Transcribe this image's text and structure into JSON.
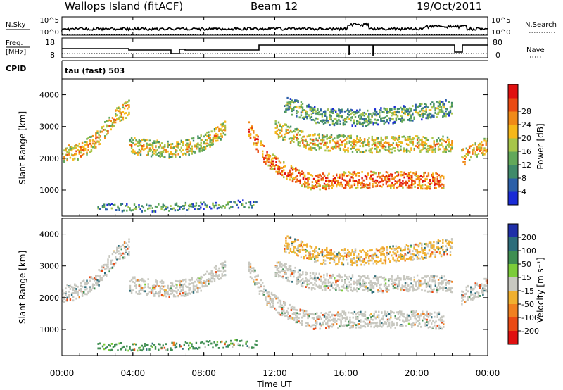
{
  "header": {
    "station": "Wallops Island (fitACF)",
    "beam": "Beam 12",
    "date": "19/Oct/2011"
  },
  "strips": {
    "nsky_label": "N.Sky",
    "nsearch_label": "N.Search",
    "freq_label_1": "Freq.",
    "freq_label_2": "[MHz]",
    "nave_label": "Nave",
    "cpid_label": "CPID",
    "cpid_value": "tau (fast) 503",
    "nsky_ticks": [
      "10^5",
      "10^0"
    ],
    "nsearch_ticks": [
      "10^5",
      "10^0"
    ],
    "freq_ticks": [
      "18",
      "8"
    ],
    "nave_ticks": [
      "80",
      "0"
    ]
  },
  "chart_data": [
    {
      "type": "heatmap",
      "parameter": "power",
      "xlabel": "Time UT",
      "ylabel": "Slant Range [km]",
      "x_ticks": [
        "00:00",
        "04:00",
        "08:00",
        "12:00",
        "16:00",
        "20:00",
        "00:00"
      ],
      "xlim_hours": [
        0,
        24
      ],
      "y_ticks": [
        1000,
        2000,
        3000,
        4000
      ],
      "ylim": [
        180,
        4500
      ],
      "colorbar_label": "Power [dB]",
      "colorbar_ticks": [
        "4",
        "8",
        "12",
        "16",
        "20",
        "24",
        "28"
      ],
      "colorbar_range": [
        0,
        32
      ],
      "colorbar_colors": [
        "#1a2bd6",
        "#2b5fa8",
        "#3f8a6a",
        "#62a85a",
        "#a7c54a",
        "#f6b81a",
        "#f08a18",
        "#ea4a12",
        "#e01010"
      ],
      "echo_bands": [
        {
          "t": [
            0.0,
            1.0,
            2.0,
            3.0,
            3.8
          ],
          "range": [
            2100,
            2200,
            2600,
            3300,
            3600
          ],
          "power": 22
        },
        {
          "t": [
            3.8,
            5.0,
            6.0,
            7.0,
            8.0,
            9.2
          ],
          "range": [
            2400,
            2300,
            2250,
            2300,
            2500,
            2900
          ],
          "power": 20
        },
        {
          "t": [
            10.5,
            11.5,
            12.5,
            14.0,
            16.0,
            18.0,
            20.0,
            21.5
          ],
          "range": [
            2900,
            2000,
            1600,
            1250,
            1300,
            1300,
            1300,
            1250
          ],
          "power": 27
        },
        {
          "t": [
            12.0,
            14.0,
            16.0,
            18.0,
            20.0,
            22.0
          ],
          "range": [
            2900,
            2500,
            2450,
            2400,
            2450,
            2400
          ],
          "power": 21
        },
        {
          "t": [
            12.5,
            14.5,
            17.0,
            19.5,
            22.0
          ],
          "range": [
            3700,
            3300,
            3250,
            3400,
            3600
          ],
          "power": 14
        },
        {
          "t": [
            22.5,
            23.2,
            24.0
          ],
          "range": [
            2000,
            2200,
            2400
          ],
          "power": 23
        },
        {
          "t": [
            2.0,
            5.0,
            8.0,
            10.0,
            11.0
          ],
          "range": [
            450,
            420,
            500,
            550,
            500
          ],
          "power": 12
        }
      ]
    },
    {
      "type": "heatmap",
      "parameter": "velocity",
      "xlabel": "Time UT",
      "ylabel": "Slant Range [km]",
      "x_ticks": [
        "00:00",
        "04:00",
        "08:00",
        "12:00",
        "16:00",
        "20:00",
        "00:00"
      ],
      "xlim_hours": [
        0,
        24
      ],
      "y_ticks": [
        1000,
        2000,
        3000,
        4000
      ],
      "ylim": [
        180,
        4500
      ],
      "colorbar_label": "Velocity [m s⁻¹]",
      "colorbar_ticks": [
        "200",
        "100",
        "50",
        "15",
        "-15",
        "-50",
        "-100",
        "-200"
      ],
      "colorbar_colors": [
        "#1f2fa8",
        "#2c6c7a",
        "#3f8e52",
        "#7ccc3a",
        "#c8c8c0",
        "#f0b030",
        "#f08020",
        "#ea4a14",
        "#e01010"
      ],
      "echo_bands": [
        {
          "t": [
            0.0,
            1.0,
            2.0,
            3.0,
            3.8
          ],
          "range": [
            2100,
            2200,
            2600,
            3300,
            3600
          ],
          "velocity": 0
        },
        {
          "t": [
            3.8,
            5.0,
            6.0,
            7.0,
            8.0,
            9.2
          ],
          "range": [
            2400,
            2300,
            2250,
            2300,
            2500,
            2900
          ],
          "velocity": 0
        },
        {
          "t": [
            10.5,
            11.5,
            12.5,
            14.0,
            16.0,
            18.0,
            20.0,
            21.5
          ],
          "range": [
            2900,
            2000,
            1600,
            1250,
            1300,
            1300,
            1300,
            1250
          ],
          "velocity": 0
        },
        {
          "t": [
            12.0,
            14.0,
            16.0,
            18.0,
            20.0,
            22.0
          ],
          "range": [
            2900,
            2500,
            2450,
            2400,
            2450,
            2400
          ],
          "velocity": 0
        },
        {
          "t": [
            12.5,
            14.5,
            17.0,
            19.5,
            22.0
          ],
          "range": [
            3700,
            3300,
            3250,
            3400,
            3600
          ],
          "velocity": -20
        },
        {
          "t": [
            22.5,
            23.2,
            24.0
          ],
          "range": [
            2000,
            2200,
            2400
          ],
          "velocity": 0
        },
        {
          "t": [
            2.0,
            5.0,
            8.0,
            10.0,
            11.0
          ],
          "range": [
            450,
            420,
            500,
            550,
            500
          ],
          "velocity": 40
        }
      ]
    }
  ]
}
